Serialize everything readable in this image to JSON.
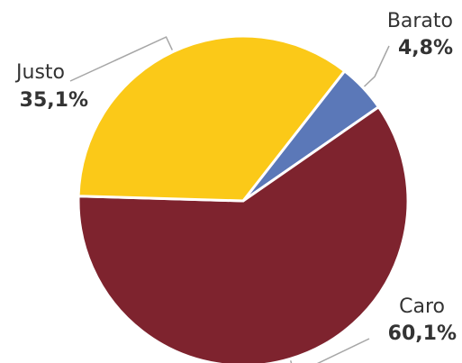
{
  "chart_data": {
    "type": "pie",
    "slices": [
      {
        "label": "Barato",
        "value": 4.8,
        "value_label": "4,8%",
        "color": "#5b78b8"
      },
      {
        "label": "Caro",
        "value": 60.1,
        "value_label": "60,1%",
        "color": "#7e232e"
      },
      {
        "label": "Justo",
        "value": 35.1,
        "value_label": "35,1%",
        "color": "#fbc918"
      }
    ],
    "legend": "none"
  }
}
